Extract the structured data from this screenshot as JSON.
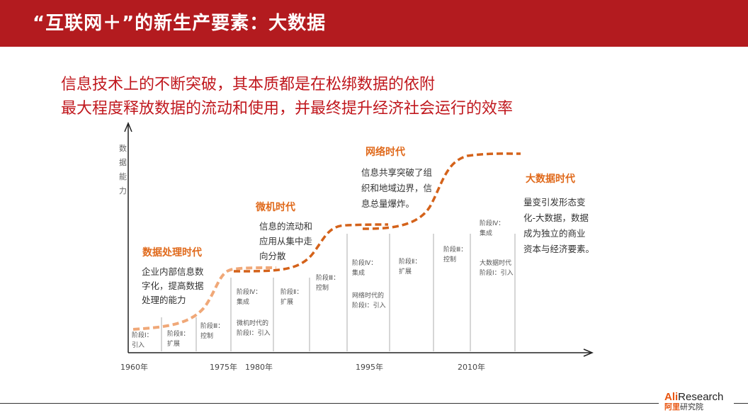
{
  "header": {
    "title": "“互联网＋”的新生产要素：大数据"
  },
  "subtitle": {
    "line1": "信息技术上的不断突破，其本质都是在松绑数据的依附",
    "line2": "最大程度释放数据的流动和使用，并最终提升经济社会运行的效率"
  },
  "diagram": {
    "y_axis_label": [
      "数",
      "据",
      "能",
      "力"
    ],
    "x_ticks": [
      "1960年",
      "1975年",
      "1980年",
      "1995年",
      "2010年"
    ],
    "eras": [
      {
        "title": "数据处理时代",
        "desc": [
          "企业内部信息数",
          "字化，提高数据",
          "处理的能力"
        ]
      },
      {
        "title": "微机时代",
        "desc": [
          "信息的流动和",
          "应用从集中走",
          "向分散"
        ]
      },
      {
        "title": "网络时代",
        "desc": [
          "信息共享突破了组",
          "织和地域边界，信",
          "息总量爆炸。"
        ]
      },
      {
        "title": "大数据时代",
        "desc": [
          "量变引发形态变",
          "化-大数据，数据",
          "成为独立的商业",
          "资本与经济要素。"
        ]
      }
    ],
    "stages": [
      {
        "lines": [
          "阶段Ⅰ：",
          "引入"
        ]
      },
      {
        "lines": [
          "阶段Ⅱ：",
          "扩展"
        ]
      },
      {
        "lines": [
          "阶段Ⅲ：",
          "控制"
        ]
      },
      {
        "lines": [
          "阶段Ⅳ：",
          "集成"
        ]
      },
      {
        "lines": [
          "微机时代的",
          "阶段Ⅰ：引入"
        ]
      },
      {
        "lines": [
          "阶段Ⅱ：",
          "扩展"
        ]
      },
      {
        "lines": [
          "阶段Ⅲ：",
          "控制"
        ]
      },
      {
        "lines": [
          "阶段Ⅳ：",
          "集成"
        ]
      },
      {
        "lines": [
          "网络时代的",
          "阶段Ⅰ：引入"
        ]
      },
      {
        "lines": [
          "阶段Ⅱ：",
          "扩展"
        ]
      },
      {
        "lines": [
          "阶段Ⅲ：",
          "控制"
        ]
      },
      {
        "lines": [
          "阶段Ⅳ：",
          "集成"
        ]
      },
      {
        "lines": [
          "大数据时代",
          "阶段Ⅰ：引入"
        ]
      }
    ]
  },
  "logo": {
    "en_prefix": "Ali",
    "en_suffix": "Research",
    "cn_prefix": "阿里",
    "cn_suffix": "研究院"
  },
  "colors": {
    "accent": "#b31b1f",
    "subtitle": "#c0171d",
    "curve_dark": "#d4621a",
    "curve_light": "#f0a878",
    "era_title": "#e06a1c"
  }
}
